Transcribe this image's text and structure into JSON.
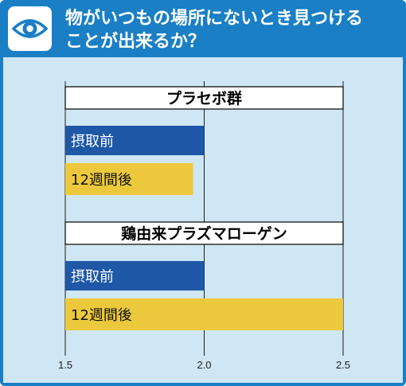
{
  "header": {
    "icon": "eye-icon",
    "title_line1": "物がいつもの場所にないとき見つける",
    "title_line2": "ことが出来るか？"
  },
  "colors": {
    "header_bg": "#1a7fc4",
    "panel_bg": "#cfe6f4",
    "before_bar": "#1e58a6",
    "after_bar": "#ecc93c"
  },
  "chart_data": {
    "type": "bar",
    "orientation": "horizontal",
    "xlim": [
      1.5,
      2.5
    ],
    "x_ticks": [
      "1.5",
      "2.0",
      "2.5"
    ],
    "tick_values": [
      1.5,
      2.0,
      2.5
    ],
    "groups": [
      {
        "name": "プラセボ群",
        "bars": [
          {
            "label": "摂取前",
            "value": 2.0,
            "series": "before"
          },
          {
            "label": "12週間後",
            "value": 1.96,
            "series": "after"
          }
        ]
      },
      {
        "name": "鶏由来プラズマローゲン",
        "bars": [
          {
            "label": "摂取前",
            "value": 2.0,
            "series": "before"
          },
          {
            "label": "12週間後",
            "value": 2.5,
            "series": "after"
          }
        ]
      }
    ]
  }
}
